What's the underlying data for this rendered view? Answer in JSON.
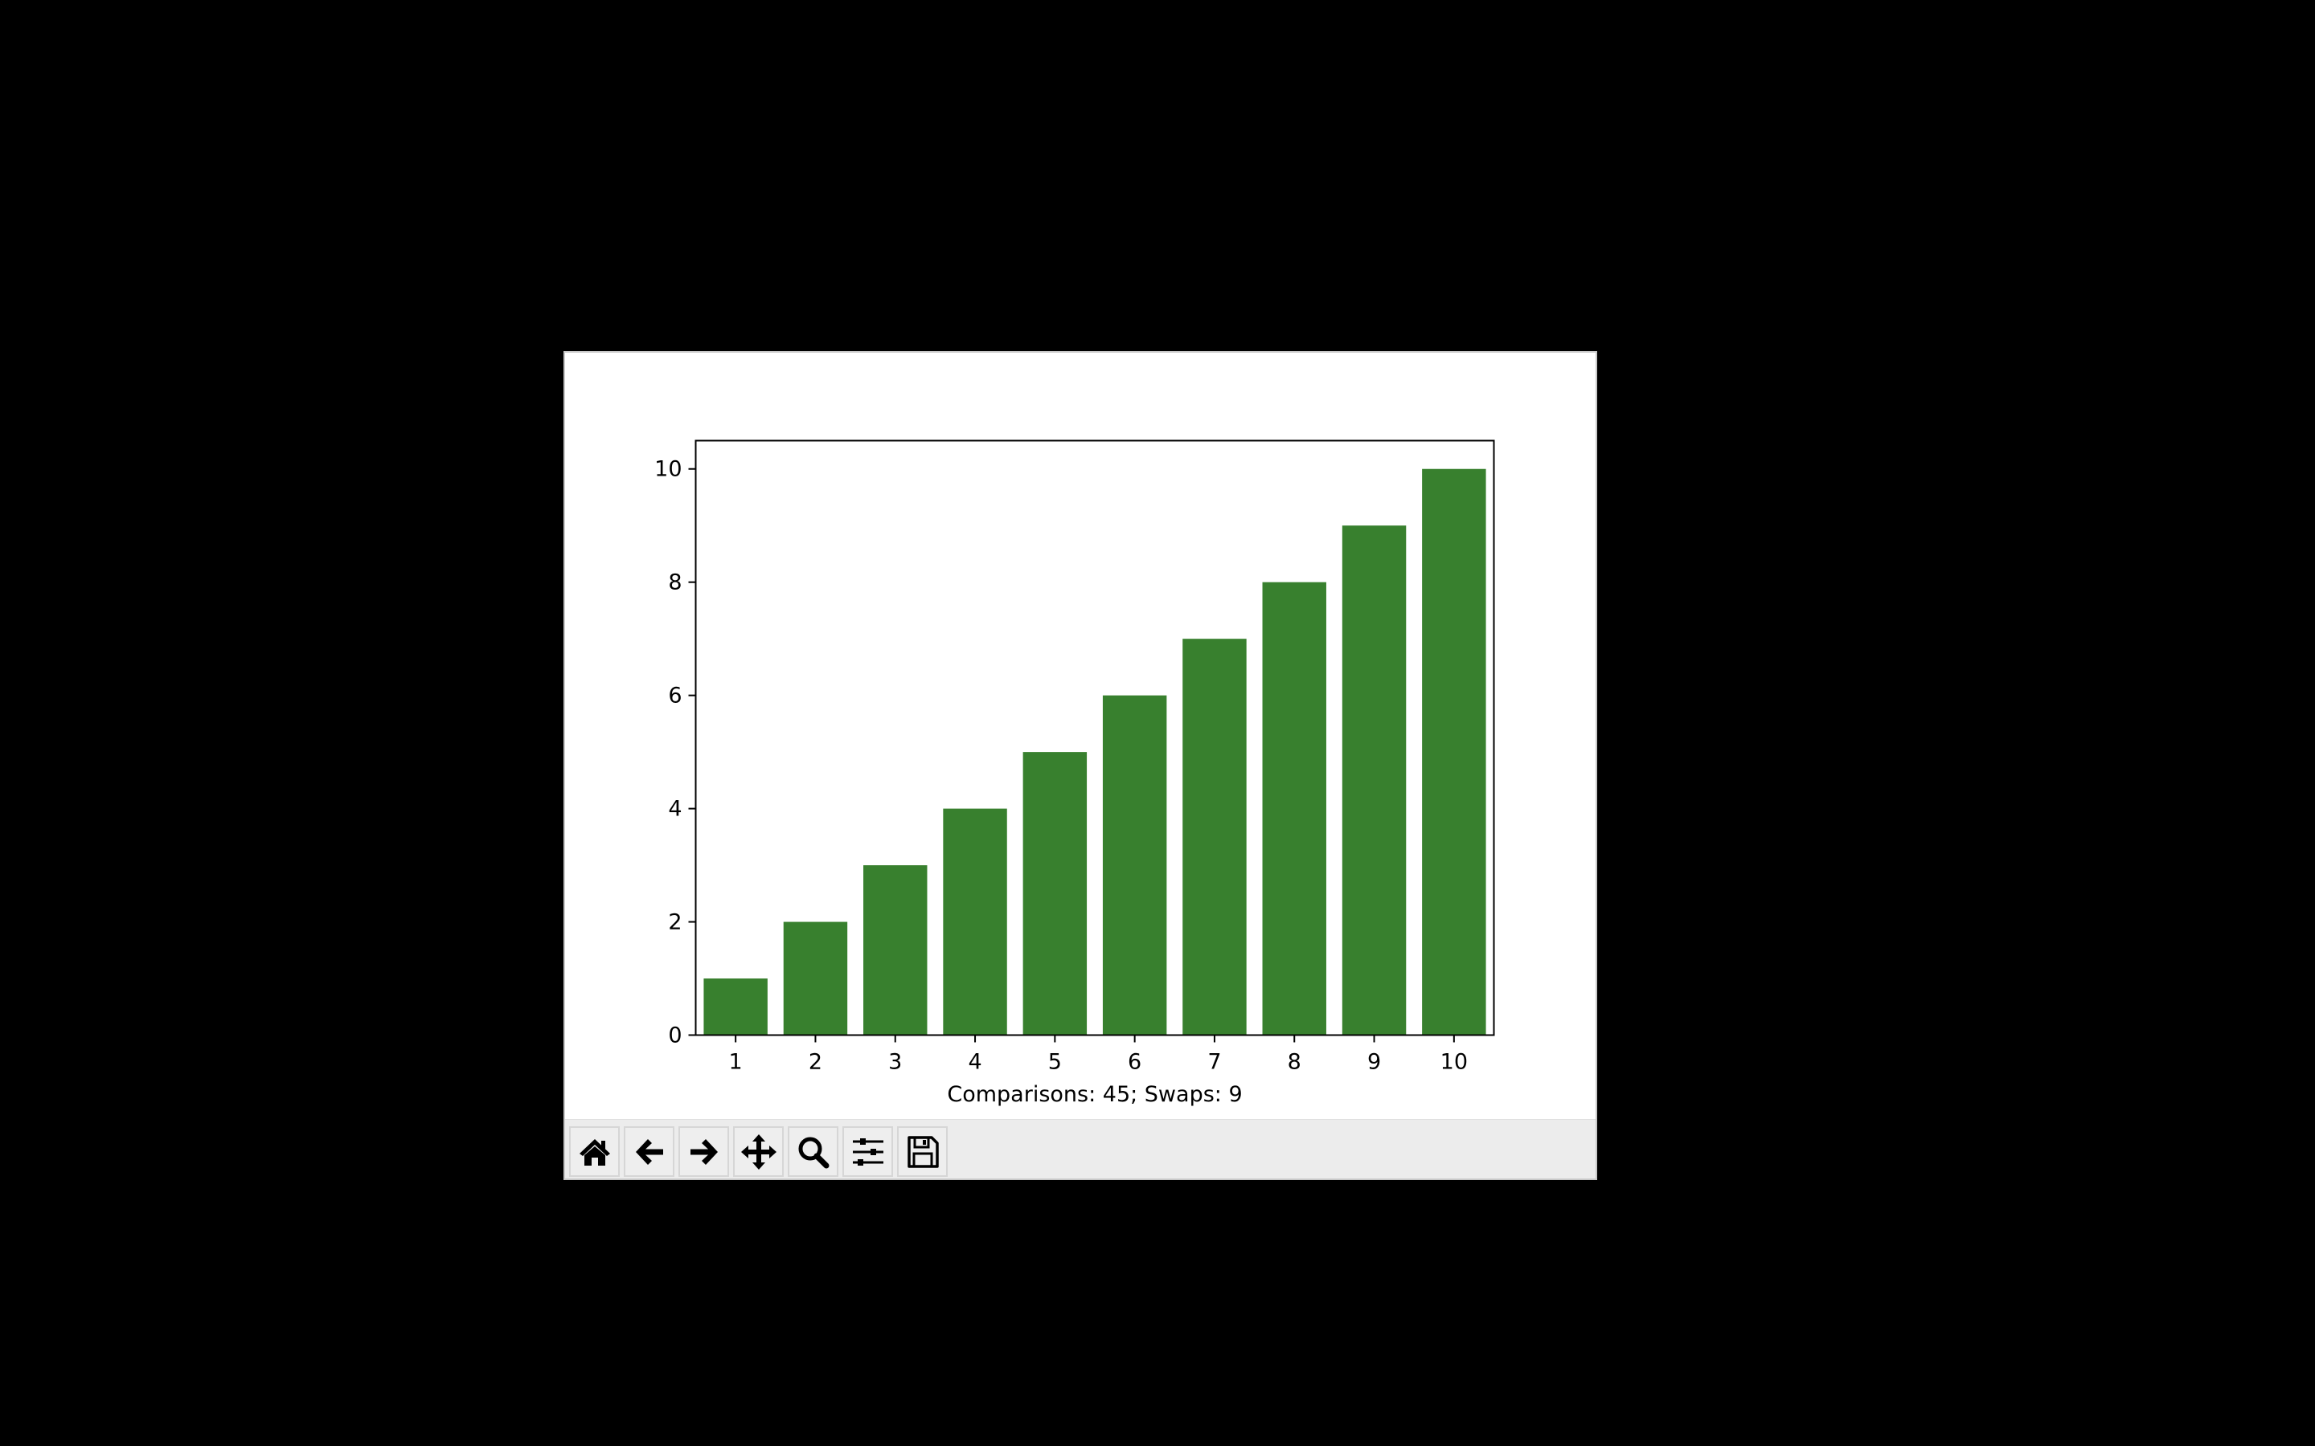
{
  "chart_data": {
    "type": "bar",
    "categories": [
      "1",
      "2",
      "3",
      "4",
      "5",
      "6",
      "7",
      "8",
      "9",
      "10"
    ],
    "values": [
      1,
      2,
      3,
      4,
      5,
      6,
      7,
      8,
      9,
      10
    ],
    "title": "",
    "xlabel": "Comparisons: 45; Swaps: 9",
    "ylabel": "",
    "ylim": [
      0,
      10.5
    ],
    "yticks": [
      0,
      2,
      4,
      6,
      8,
      10
    ],
    "grid": false,
    "bar_color": "#38802e"
  },
  "toolbar": {
    "buttons": [
      {
        "name": "home-button",
        "icon": "home-icon"
      },
      {
        "name": "back-button",
        "icon": "arrow-left-icon"
      },
      {
        "name": "forward-button",
        "icon": "arrow-right-icon"
      },
      {
        "name": "pan-button",
        "icon": "move-icon"
      },
      {
        "name": "zoom-button",
        "icon": "magnifier-icon"
      },
      {
        "name": "configure-subplots-button",
        "icon": "sliders-icon"
      },
      {
        "name": "save-button",
        "icon": "floppy-disk-icon"
      }
    ]
  }
}
